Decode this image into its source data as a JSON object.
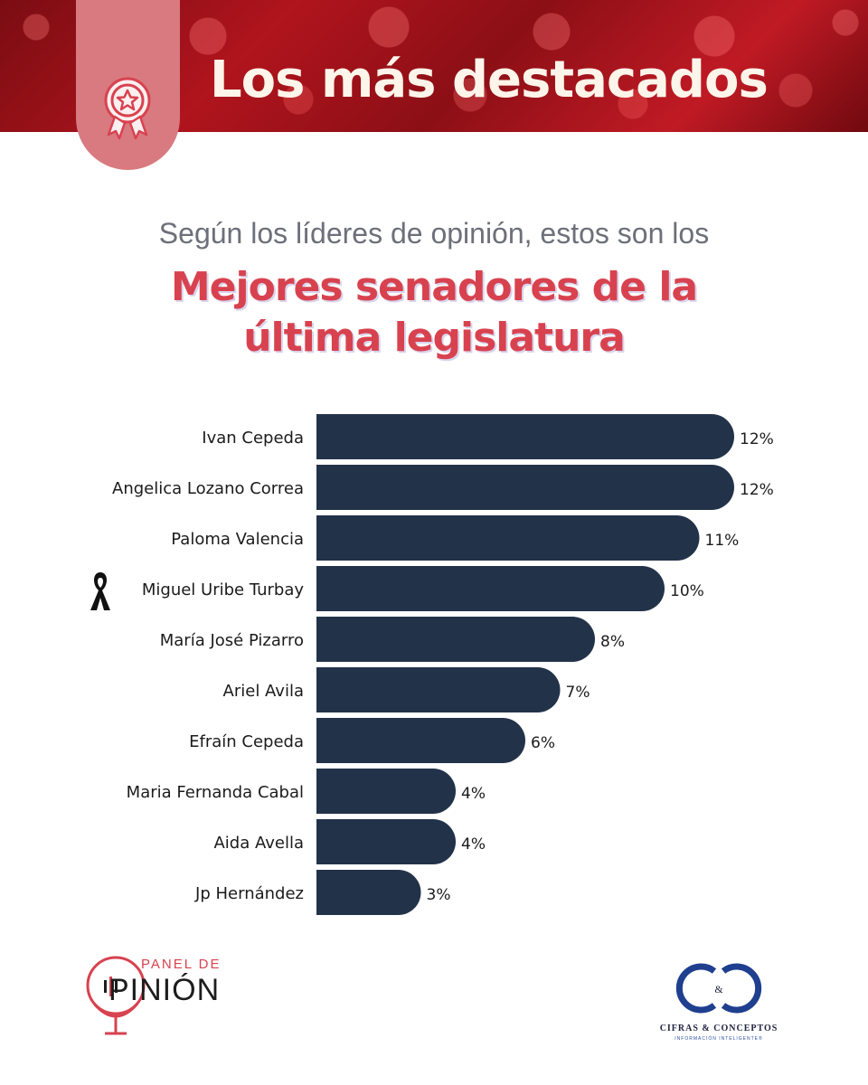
{
  "banner": {
    "title": "Los más destacados",
    "badge_icon": "award-ribbon-icon"
  },
  "subtitle": "Según los líderes de opinión, estos son los",
  "headline": {
    "line1": "Mejores senadores de la",
    "line2": "última legislatura"
  },
  "chart_data": {
    "type": "bar",
    "orientation": "horizontal",
    "categories": [
      "Ivan Cepeda",
      "Angelica Lozano Correa",
      "Paloma Valencia",
      "Miguel Uribe Turbay",
      "María José Pizarro",
      "Ariel Avila",
      "Efraín Cepeda",
      "Maria Fernanda Cabal",
      "Aida Avella",
      "Jp Hernández"
    ],
    "values": [
      12,
      12,
      11,
      10,
      8,
      7,
      6,
      4,
      4,
      3
    ],
    "value_labels": [
      "12%",
      "12%",
      "11%",
      "10%",
      "8%",
      "7%",
      "6%",
      "4%",
      "4%",
      "3%"
    ],
    "unit": "%",
    "xlim": [
      0,
      12
    ],
    "bar_color": "#223249",
    "annotations": [
      {
        "category": "Miguel Uribe Turbay",
        "icon": "mourning-ribbon-icon"
      }
    ]
  },
  "footer": {
    "left_logo": {
      "small": "PANEL DE",
      "big": "PINIÓN",
      "icon": "microphone-icon"
    },
    "right_logo": {
      "monogram": "C&C",
      "name": "CIFRAS & CONCEPTOS",
      "tagline": "INFORMACIÓN INTELIGENTE®"
    }
  },
  "colors": {
    "accent": "#d8424f",
    "bar": "#223249",
    "subtitle": "#6d6f7a",
    "banner_text": "#fdf4ea"
  }
}
